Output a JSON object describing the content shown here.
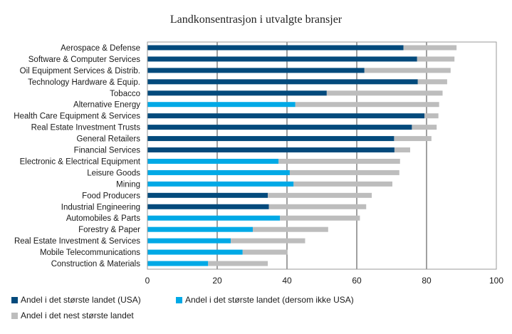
{
  "chart_data": {
    "type": "bar",
    "orientation": "horizontal",
    "stacked": true,
    "title": "Landkonsentrasjon i utvalgte bransjer",
    "xlabel": "",
    "ylabel": "",
    "xlim": [
      0,
      100
    ],
    "xticks": [
      "0",
      "20",
      "40",
      "60",
      "80",
      "100"
    ],
    "grid": "vertical",
    "legend_position": "bottom",
    "categories": [
      "Aerospace & Defense",
      "Software & Computer Services",
      "Oil Equipment Services & Distrib.",
      "Technology Hardware & Equip.",
      "Tobacco",
      "Alternative Energy",
      "Health Care Equipment & Services",
      "Real Estate Investment Trusts",
      "General Retailers",
      "Financial Services",
      "Electronic & Electrical Equipment",
      "Leisure Goods",
      "Mining",
      "Food Producers",
      "Industrial Engineering",
      "Automobiles & Parts",
      "Forestry & Paper",
      "Real Estate Investment & Services",
      "Mobile Telecommunications",
      "Construction & Materials"
    ],
    "largest_is_usa": [
      true,
      true,
      true,
      true,
      true,
      false,
      true,
      true,
      true,
      true,
      false,
      false,
      false,
      true,
      true,
      false,
      false,
      false,
      false,
      false
    ],
    "series": [
      {
        "name": "Andel i det største landet (USA)",
        "color": "#034a7c",
        "values": [
          73.4,
          77.3,
          62.2,
          77.5,
          51.4,
          null,
          79.4,
          75.8,
          70.7,
          70.8,
          null,
          null,
          null,
          34.5,
          34.8,
          null,
          null,
          null,
          null,
          null
        ]
      },
      {
        "name": "Andel i det største landet (dersom ikke USA)",
        "color": "#00a9e6",
        "values": [
          null,
          null,
          null,
          null,
          null,
          42.4,
          null,
          null,
          null,
          null,
          37.6,
          40.8,
          41.9,
          null,
          null,
          38.0,
          30.2,
          23.9,
          27.3,
          17.4
        ]
      },
      {
        "name": "Andel i det nest største landet",
        "color": "#bdbdbd",
        "values": [
          15.2,
          10.7,
          24.7,
          8.4,
          33.2,
          41.2,
          4.0,
          7.1,
          10.7,
          4.5,
          34.8,
          31.4,
          28.3,
          29.8,
          27.9,
          22.9,
          21.6,
          21.3,
          12.8,
          17.1
        ]
      }
    ]
  }
}
